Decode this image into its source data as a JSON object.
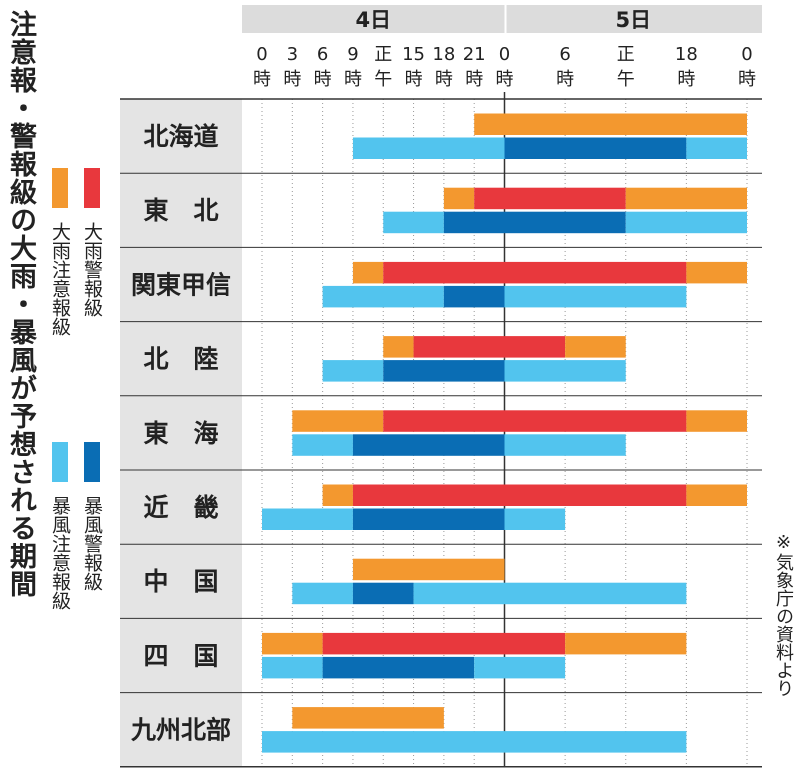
{
  "title": "注意報・警報級の大雨・暴風が予想される期間",
  "source": "※気象庁の資料より",
  "legend": [
    {
      "label": "大雨警報級",
      "color": "#e8383d"
    },
    {
      "label": "大雨注意報級",
      "color": "#f3982f"
    },
    {
      "label": "暴風警報級",
      "color": "#0a6db4"
    },
    {
      "label": "暴風注意報級",
      "color": "#52c4ee"
    }
  ],
  "chart_data": {
    "type": "bar",
    "title": "注意報・警報級の大雨・暴風が予想される期間",
    "days": [
      "4日",
      "5日"
    ],
    "time_ticks": [
      {
        "h": 0,
        "top": "0",
        "bottom": "時"
      },
      {
        "h": 3,
        "top": "3",
        "bottom": "時"
      },
      {
        "h": 6,
        "top": "6",
        "bottom": "時"
      },
      {
        "h": 9,
        "top": "9",
        "bottom": "時"
      },
      {
        "h": 12,
        "top": "正",
        "bottom": "午"
      },
      {
        "h": 15,
        "top": "15",
        "bottom": "時"
      },
      {
        "h": 18,
        "top": "18",
        "bottom": "時"
      },
      {
        "h": 21,
        "top": "21",
        "bottom": "時"
      },
      {
        "h": 24,
        "top": "0",
        "bottom": "時"
      },
      {
        "h": 30,
        "top": "6",
        "bottom": "時"
      },
      {
        "h": 36,
        "top": "正",
        "bottom": "午"
      },
      {
        "h": 42,
        "top": "18",
        "bottom": "時"
      },
      {
        "h": 48,
        "top": "0",
        "bottom": "時"
      }
    ],
    "x_range_hours": [
      0,
      48
    ],
    "regions": [
      {
        "name": "北海道",
        "rain": [
          {
            "from": 21,
            "to": 48,
            "level": "注意報級"
          }
        ],
        "wind": [
          {
            "from": 9,
            "to": 24,
            "level": "注意報級"
          },
          {
            "from": 24,
            "to": 42,
            "level": "警報級"
          },
          {
            "from": 42,
            "to": 48,
            "level": "注意報級"
          }
        ]
      },
      {
        "name": "東　北",
        "rain": [
          {
            "from": 18,
            "to": 21,
            "level": "注意報級"
          },
          {
            "from": 21,
            "to": 36,
            "level": "警報級"
          },
          {
            "from": 36,
            "to": 48,
            "level": "注意報級"
          }
        ],
        "wind": [
          {
            "from": 12,
            "to": 18,
            "level": "注意報級"
          },
          {
            "from": 18,
            "to": 36,
            "level": "警報級"
          },
          {
            "from": 36,
            "to": 48,
            "level": "注意報級"
          }
        ]
      },
      {
        "name": "関東甲信",
        "rain": [
          {
            "from": 9,
            "to": 12,
            "level": "注意報級"
          },
          {
            "from": 12,
            "to": 42,
            "level": "警報級"
          },
          {
            "from": 42,
            "to": 48,
            "level": "注意報級"
          }
        ],
        "wind": [
          {
            "from": 6,
            "to": 18,
            "level": "注意報級"
          },
          {
            "from": 18,
            "to": 24,
            "level": "警報級"
          },
          {
            "from": 24,
            "to": 42,
            "level": "注意報級"
          }
        ]
      },
      {
        "name": "北　陸",
        "rain": [
          {
            "from": 12,
            "to": 15,
            "level": "注意報級"
          },
          {
            "from": 15,
            "to": 30,
            "level": "警報級"
          },
          {
            "from": 30,
            "to": 36,
            "level": "注意報級"
          }
        ],
        "wind": [
          {
            "from": 6,
            "to": 12,
            "level": "注意報級"
          },
          {
            "from": 12,
            "to": 24,
            "level": "警報級"
          },
          {
            "from": 24,
            "to": 36,
            "level": "注意報級"
          }
        ]
      },
      {
        "name": "東　海",
        "rain": [
          {
            "from": 3,
            "to": 12,
            "level": "注意報級"
          },
          {
            "from": 12,
            "to": 42,
            "level": "警報級"
          },
          {
            "from": 42,
            "to": 48,
            "level": "注意報級"
          }
        ],
        "wind": [
          {
            "from": 3,
            "to": 9,
            "level": "注意報級"
          },
          {
            "from": 9,
            "to": 24,
            "level": "警報級"
          },
          {
            "from": 24,
            "to": 36,
            "level": "注意報級"
          }
        ]
      },
      {
        "name": "近　畿",
        "rain": [
          {
            "from": 6,
            "to": 9,
            "level": "注意報級"
          },
          {
            "from": 9,
            "to": 42,
            "level": "警報級"
          },
          {
            "from": 42,
            "to": 48,
            "level": "注意報級"
          }
        ],
        "wind": [
          {
            "from": 0,
            "to": 9,
            "level": "注意報級"
          },
          {
            "from": 9,
            "to": 24,
            "level": "警報級"
          },
          {
            "from": 24,
            "to": 30,
            "level": "注意報級"
          }
        ]
      },
      {
        "name": "中　国",
        "rain": [
          {
            "from": 9,
            "to": 24,
            "level": "注意報級"
          }
        ],
        "wind": [
          {
            "from": 3,
            "to": 9,
            "level": "注意報級"
          },
          {
            "from": 9,
            "to": 15,
            "level": "警報級"
          },
          {
            "from": 15,
            "to": 42,
            "level": "注意報級"
          }
        ]
      },
      {
        "name": "四　国",
        "rain": [
          {
            "from": 0,
            "to": 6,
            "level": "注意報級"
          },
          {
            "from": 6,
            "to": 30,
            "level": "警報級"
          },
          {
            "from": 30,
            "to": 42,
            "level": "注意報級"
          }
        ],
        "wind": [
          {
            "from": 0,
            "to": 6,
            "level": "注意報級"
          },
          {
            "from": 6,
            "to": 21,
            "level": "警報級"
          },
          {
            "from": 21,
            "to": 30,
            "level": "注意報級"
          }
        ]
      },
      {
        "name": "九州北部",
        "rain": [
          {
            "from": 3,
            "to": 18,
            "level": "注意報級"
          }
        ],
        "wind": [
          {
            "from": 0,
            "to": 42,
            "level": "注意報級"
          }
        ]
      }
    ]
  }
}
